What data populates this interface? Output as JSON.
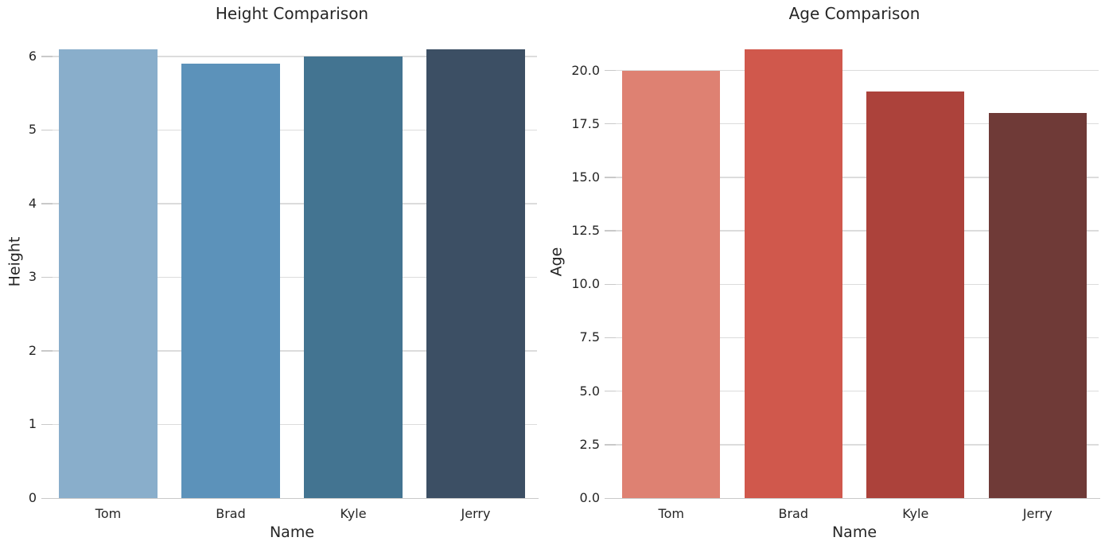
{
  "figure": {
    "background_color": "#ffffff",
    "text_color": "#262626",
    "grid_color": "#dcdcdc",
    "axis_line_color": "#c9c9c9"
  },
  "chart_data": [
    {
      "type": "bar",
      "title": "Height Comparison",
      "xlabel": "Name",
      "ylabel": "Height",
      "categories": [
        "Tom",
        "Brad",
        "Kyle",
        "Jerry"
      ],
      "values": [
        6.1,
        5.9,
        6.0,
        6.1
      ],
      "ylim": [
        0,
        6.405
      ],
      "ytick_values": [
        0,
        1,
        2,
        3,
        4,
        5,
        6
      ],
      "ytick_labels": [
        "0",
        "1",
        "2",
        "3",
        "4",
        "5",
        "6"
      ],
      "bar_colors": [
        "#89aecb",
        "#5c92ba",
        "#437491",
        "#3c4f64"
      ],
      "grid": "horizontal",
      "legend": "none",
      "bar_width_fraction": 0.8
    },
    {
      "type": "bar",
      "title": "Age Comparison",
      "xlabel": "Name",
      "ylabel": "Age",
      "categories": [
        "Tom",
        "Brad",
        "Kyle",
        "Jerry"
      ],
      "values": [
        20,
        21,
        19,
        18
      ],
      "ylim": [
        0,
        22.05
      ],
      "ytick_values": [
        0,
        2.5,
        5,
        7.5,
        10,
        12.5,
        15,
        17.5,
        20
      ],
      "ytick_labels": [
        "0.0",
        "2.5",
        "5.0",
        "7.5",
        "10.0",
        "12.5",
        "15.0",
        "17.5",
        "20.0"
      ],
      "bar_colors": [
        "#de8172",
        "#d0584c",
        "#ac423b",
        "#6f3a37"
      ],
      "grid": "horizontal",
      "legend": "none",
      "bar_width_fraction": 0.8
    }
  ]
}
